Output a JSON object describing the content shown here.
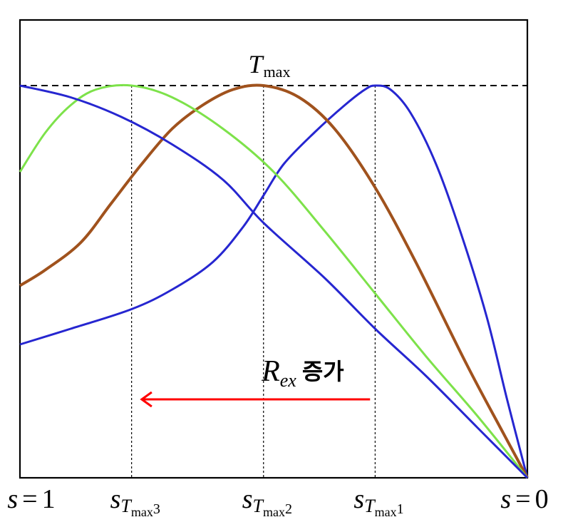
{
  "chart_data": {
    "type": "line",
    "x_direction": "decreasing",
    "xlim": [
      1,
      0
    ],
    "ylim": [
      0,
      1
    ],
    "grid": false,
    "legend": "none",
    "x_tick_labels": {
      "left": {
        "var": "s",
        "eq": "=",
        "val": "1"
      },
      "right": {
        "var": "s",
        "eq": "=",
        "val": "0"
      },
      "mid": [
        {
          "x": 0.78,
          "var": "s",
          "sub": "T",
          "subsub": "max",
          "idx": "3"
        },
        {
          "x": 0.52,
          "var": "s",
          "sub": "T",
          "subsub": "max",
          "idx": "2"
        },
        {
          "x": 0.3,
          "var": "s",
          "sub": "T",
          "subsub": "max",
          "idx": "1"
        }
      ]
    },
    "tmax_line": {
      "y": 1.0,
      "label": "T",
      "label_sub": "max",
      "style": "dashed"
    },
    "annotation": {
      "text_main": "R",
      "text_sub": "ex",
      "text_korean": "증가",
      "arrow_from_x": 0.31,
      "arrow_to_x": 0.76,
      "arrow_y": 0.2,
      "color": "#ff0000"
    },
    "series": [
      {
        "color": "#2626d0",
        "points": [
          [
            1.0,
            0.34
          ],
          [
            0.9,
            0.38
          ],
          [
            0.78,
            0.43
          ],
          [
            0.7,
            0.48
          ],
          [
            0.62,
            0.55
          ],
          [
            0.56,
            0.64
          ],
          [
            0.52,
            0.72
          ],
          [
            0.48,
            0.8
          ],
          [
            0.42,
            0.88
          ],
          [
            0.36,
            0.95
          ],
          [
            0.32,
            0.99
          ],
          [
            0.3,
            1.0
          ],
          [
            0.27,
            0.99
          ],
          [
            0.23,
            0.93
          ],
          [
            0.18,
            0.8
          ],
          [
            0.13,
            0.62
          ],
          [
            0.08,
            0.41
          ],
          [
            0.04,
            0.2
          ],
          [
            0.0,
            0.0
          ]
        ]
      },
      {
        "color": "#a0521d",
        "points": [
          [
            1.0,
            0.49
          ],
          [
            0.95,
            0.53
          ],
          [
            0.88,
            0.6
          ],
          [
            0.82,
            0.7
          ],
          [
            0.76,
            0.8
          ],
          [
            0.7,
            0.89
          ],
          [
            0.64,
            0.95
          ],
          [
            0.58,
            0.99
          ],
          [
            0.52,
            1.0
          ],
          [
            0.45,
            0.97
          ],
          [
            0.38,
            0.89
          ],
          [
            0.3,
            0.74
          ],
          [
            0.22,
            0.55
          ],
          [
            0.12,
            0.29
          ],
          [
            0.05,
            0.12
          ],
          [
            0.0,
            0.0
          ]
        ]
      },
      {
        "color": "#7de24a",
        "points": [
          [
            1.0,
            0.78
          ],
          [
            0.95,
            0.88
          ],
          [
            0.9,
            0.95
          ],
          [
            0.85,
            0.99
          ],
          [
            0.78,
            1.0
          ],
          [
            0.7,
            0.97
          ],
          [
            0.6,
            0.89
          ],
          [
            0.5,
            0.78
          ],
          [
            0.4,
            0.63
          ],
          [
            0.3,
            0.47
          ],
          [
            0.2,
            0.31
          ],
          [
            0.1,
            0.16
          ],
          [
            0.0,
            0.0
          ]
        ]
      },
      {
        "color": "#2626d0",
        "points": [
          [
            1.0,
            1.0
          ],
          [
            0.9,
            0.97
          ],
          [
            0.8,
            0.92
          ],
          [
            0.7,
            0.85
          ],
          [
            0.6,
            0.76
          ],
          [
            0.52,
            0.65
          ],
          [
            0.4,
            0.51
          ],
          [
            0.3,
            0.38
          ],
          [
            0.2,
            0.26
          ],
          [
            0.1,
            0.13
          ],
          [
            0.0,
            0.0
          ]
        ]
      }
    ]
  }
}
